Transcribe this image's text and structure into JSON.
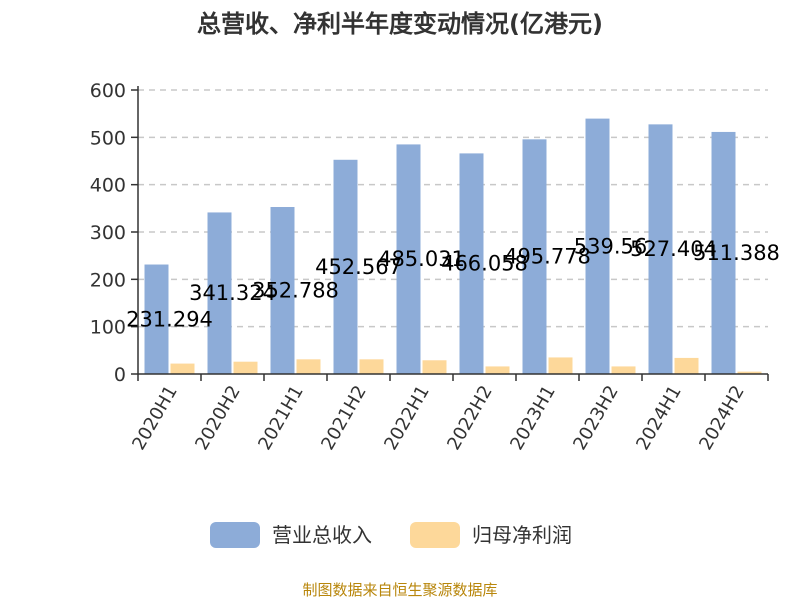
{
  "source_text": "制图数据来自恒生聚源数据库",
  "chart_data": {
    "type": "bar",
    "title": "总营收、净利半年度变动情况(亿港元)",
    "xlabel": "",
    "ylabel": "",
    "ylim": [
      0,
      600
    ],
    "yticks": [
      "0",
      "100",
      "200",
      "300",
      "400",
      "500",
      "600"
    ],
    "categories": [
      "2020H1",
      "2020H2",
      "2021H1",
      "2021H2",
      "2022H1",
      "2022H2",
      "2023H1",
      "2023H2",
      "2024H1",
      "2024H2"
    ],
    "series": [
      {
        "name": "营业总收入",
        "color": "#8dacd8",
        "values": [
          231.294,
          341.324,
          352.788,
          452.567,
          485.031,
          466.058,
          495.778,
          539.56,
          527.404,
          511.388
        ],
        "labels": [
          "231.294",
          "341.324",
          "352.788",
          "452.567",
          "485.031",
          "466.058",
          "495.778",
          "539.56",
          "527.404",
          "511.388"
        ]
      },
      {
        "name": "归母净利润",
        "color": "#fdd89a",
        "values": [
          22,
          26,
          31,
          31,
          29,
          16,
          35,
          16,
          34,
          5
        ]
      }
    ],
    "grid": "horizontal-dashed",
    "legend_position": "bottom"
  }
}
